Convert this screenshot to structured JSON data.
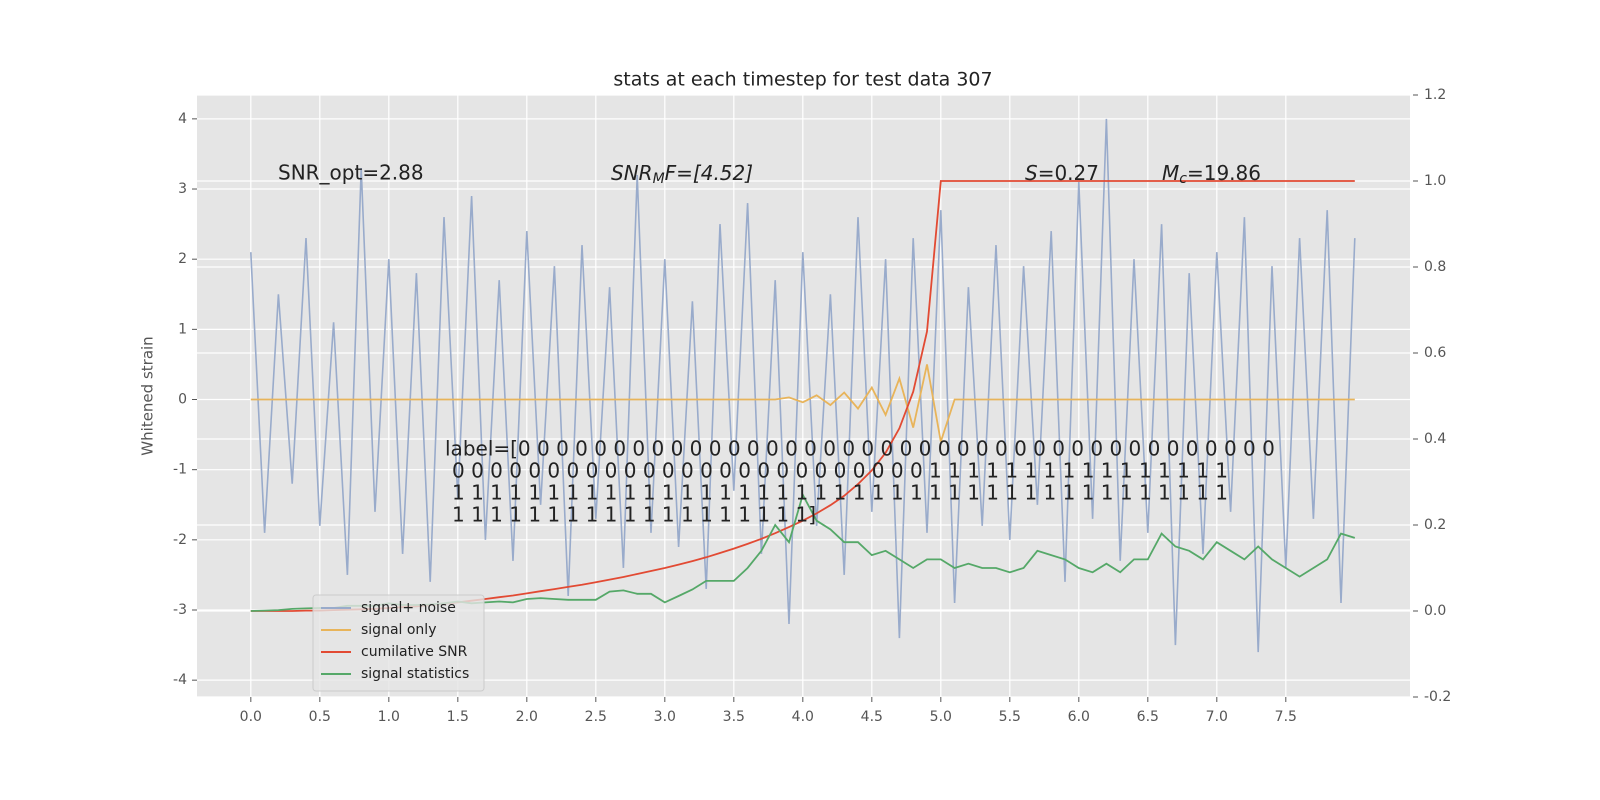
{
  "chart_data": {
    "type": "line",
    "title": "stats at each timestep for test data 307",
    "y_label": "Whitened strain",
    "x": [
      0.0,
      0.1,
      0.2,
      0.3,
      0.4,
      0.5,
      0.6,
      0.7,
      0.8,
      0.9,
      1.0,
      1.1,
      1.2,
      1.3,
      1.4,
      1.5,
      1.6,
      1.7,
      1.8,
      1.9,
      2.0,
      2.1,
      2.2,
      2.3,
      2.4,
      2.5,
      2.6,
      2.7,
      2.8,
      2.9,
      3.0,
      3.1,
      3.2,
      3.3,
      3.4,
      3.5,
      3.6,
      3.7,
      3.8,
      3.9,
      4.0,
      4.1,
      4.2,
      4.3,
      4.4,
      4.5,
      4.6,
      4.7,
      4.8,
      4.9,
      5.0,
      5.1,
      5.2,
      5.3,
      5.4,
      5.5,
      5.6,
      5.7,
      5.8,
      5.9,
      6.0,
      6.1,
      6.2,
      6.3,
      6.4,
      6.5,
      6.6,
      6.7,
      6.8,
      6.9,
      7.0,
      7.1,
      7.2,
      7.3,
      7.4,
      7.5,
      7.6,
      7.7,
      7.8,
      7.9,
      8.0
    ],
    "series": [
      {
        "name": "signal+ noise",
        "color": "#99abcb",
        "values": [
          2.1,
          -1.9,
          1.5,
          -1.2,
          2.3,
          -1.8,
          1.1,
          -2.5,
          3.3,
          -1.6,
          2.0,
          -2.2,
          1.8,
          -2.6,
          2.6,
          -1.4,
          2.9,
          -2.0,
          1.7,
          -2.3,
          2.4,
          -1.5,
          1.9,
          -2.8,
          2.2,
          -1.7,
          1.6,
          -2.4,
          3.2,
          -1.9,
          2.0,
          -2.1,
          1.4,
          -2.7,
          2.5,
          -1.3,
          2.8,
          -2.2,
          1.7,
          -3.2,
          2.1,
          -1.8,
          1.5,
          -2.5,
          2.6,
          -1.6,
          2.0,
          -3.4,
          2.3,
          -1.9,
          2.7,
          -2.9,
          1.6,
          -1.8,
          2.2,
          -2.0,
          1.9,
          -1.5,
          2.4,
          -2.6,
          3.1,
          -1.7,
          4.0,
          -2.3,
          2.0,
          -1.9,
          2.5,
          -3.5,
          1.8,
          -2.2,
          2.1,
          -1.6,
          2.6,
          -3.6,
          1.9,
          -2.4,
          2.3,
          -1.7,
          2.7,
          -2.9,
          2.3
        ]
      },
      {
        "name": "signal only",
        "color": "#e8b45a",
        "values": [
          0,
          0,
          0,
          0,
          0,
          0,
          0,
          0,
          0,
          0,
          0,
          0,
          0,
          0,
          0,
          0,
          0,
          0,
          0,
          0,
          0,
          0,
          0,
          0,
          0,
          0,
          0,
          0,
          0,
          0,
          0,
          0,
          0,
          0,
          0,
          0,
          0,
          0,
          0,
          0.03,
          -0.04,
          0.06,
          -0.08,
          0.1,
          -0.13,
          0.17,
          -0.22,
          0.3,
          -0.4,
          0.5,
          -0.6,
          0,
          0,
          0,
          0,
          0,
          0,
          0,
          0,
          0,
          0,
          0,
          0,
          0,
          0,
          0,
          0,
          0,
          0,
          0,
          0,
          0,
          0,
          0,
          0,
          0,
          0,
          0,
          0,
          0,
          0
        ]
      },
      {
        "name": "cumilative SNR",
        "color": "#e24a33",
        "axis": "y2",
        "values": [
          0,
          0,
          0,
          0,
          0.001,
          0.001,
          0.002,
          0.003,
          0.004,
          0.005,
          0.007,
          0.009,
          0.011,
          0.014,
          0.017,
          0.02,
          0.024,
          0.028,
          0.032,
          0.036,
          0.041,
          0.046,
          0.051,
          0.056,
          0.061,
          0.067,
          0.073,
          0.079,
          0.086,
          0.093,
          0.1,
          0.108,
          0.116,
          0.125,
          0.135,
          0.145,
          0.156,
          0.168,
          0.181,
          0.195,
          0.21,
          0.227,
          0.246,
          0.268,
          0.295,
          0.327,
          0.368,
          0.425,
          0.51,
          0.65,
          1.0,
          1.0,
          1.0,
          1.0,
          1.0,
          1.0,
          1.0,
          1.0,
          1.0,
          1.0,
          1.0,
          1.0,
          1.0,
          1.0,
          1.0,
          1.0,
          1.0,
          1.0,
          1.0,
          1.0,
          1.0,
          1.0,
          1.0,
          1.0,
          1.0,
          1.0,
          1.0,
          1.0,
          1.0,
          1.0,
          1.0
        ]
      },
      {
        "name": "signal statistics",
        "color": "#55a868",
        "axis": "y2",
        "values": [
          0.0,
          0.001,
          0.002,
          0.005,
          0.006,
          0.007,
          0.007,
          0.012,
          0.012,
          0.012,
          0.018,
          0.014,
          0.014,
          0.015,
          0.018,
          0.022,
          0.018,
          0.02,
          0.022,
          0.02,
          0.028,
          0.03,
          0.028,
          0.026,
          0.026,
          0.026,
          0.045,
          0.048,
          0.04,
          0.04,
          0.02,
          0.035,
          0.05,
          0.07,
          0.07,
          0.07,
          0.1,
          0.14,
          0.2,
          0.16,
          0.27,
          0.21,
          0.19,
          0.16,
          0.16,
          0.13,
          0.14,
          0.12,
          0.1,
          0.12,
          0.12,
          0.1,
          0.11,
          0.1,
          0.1,
          0.09,
          0.1,
          0.14,
          0.13,
          0.12,
          0.1,
          0.09,
          0.11,
          0.09,
          0.12,
          0.12,
          0.18,
          0.15,
          0.14,
          0.12,
          0.16,
          0.14,
          0.12,
          0.15,
          0.12,
          0.1,
          0.08,
          0.1,
          0.12,
          0.18,
          0.17
        ]
      }
    ],
    "xlim": [
      -0.39,
      8.4
    ],
    "ylim": [
      -4.24,
      4.34
    ],
    "y2lim": [
      -0.2,
      1.2
    ],
    "xticks": [
      {
        "value": 0,
        "label": "0.0"
      },
      0.5,
      {
        "value": 1,
        "label": "1.0"
      },
      1.5,
      {
        "value": 2,
        "label": "2.0"
      },
      2.5,
      {
        "value": 3,
        "label": "3.0"
      },
      3.5,
      {
        "value": 4,
        "label": "4.0"
      },
      4.5,
      {
        "value": 5,
        "label": "5.0"
      },
      5.5,
      {
        "value": 6,
        "label": "6.0"
      },
      6.5,
      {
        "value": 7,
        "label": "7.0"
      },
      7.5
    ],
    "yticks": [
      -4,
      -3,
      -2,
      -1,
      0,
      1,
      2,
      3,
      4
    ],
    "y2ticks": [
      -0.2,
      {
        "value": 0,
        "label": "0.0"
      },
      0.2,
      0.4,
      0.6,
      0.8,
      {
        "value": 1,
        "label": "1.0"
      },
      1.2
    ],
    "grid": true,
    "legend": "lower left",
    "annotations": [
      {
        "text": "SNR_opt=2.88"
      },
      {
        "symbol": "SNR",
        "sub": "M",
        "rest": "F=[4.52]"
      },
      {
        "symbol": "S",
        "rest": "=0.27"
      },
      {
        "symbol": "M",
        "sub": "c",
        "rest": "=19.86"
      }
    ],
    "label_lines": [
      "label=[0 0 0 0 0 0 0 0 0 0 0 0 0 0 0 0 0 0 0 0 0 0 0 0 0 0 0 0 0 0 0 0 0 0 0 0 0 0 0 0",
      "0 0 0 0 0 0 0 0 0 0 0 0 0 0 0 0 0 0 0 0 0 0 0 0 0 1 1 1 1 1 1 1 1 1 1 1 1 1 1 1 1",
      "1 1 1 1 1 1 1 1 1 1 1 1 1 1 1 1 1 1 1 1 1 1 1 1 1 1 1 1 1 1 1 1 1 1 1 1 1 1 1 1 1",
      "1 1 1 1 1 1 1 1 1 1 1 1 1 1 1 1 1 1 1]"
    ]
  }
}
